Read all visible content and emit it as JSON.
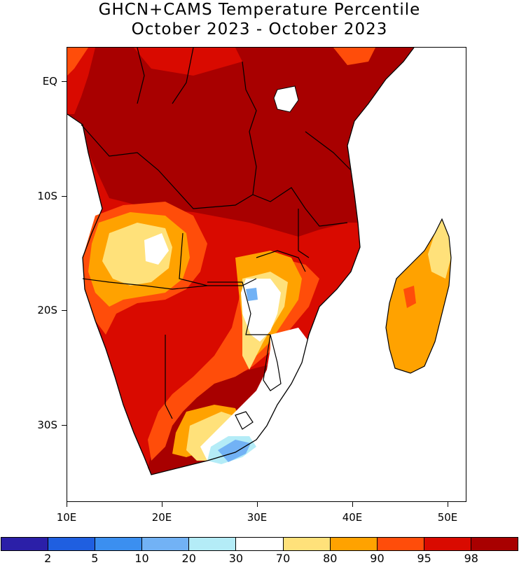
{
  "title_line1": "GHCN+CAMS Temperature Percentile",
  "title_line2": "October 2023 - October 2023",
  "y_axis": [
    {
      "label": "EQ",
      "lat": 0
    },
    {
      "label": "10S",
      "lat": -10
    },
    {
      "label": "20S",
      "lat": -20
    },
    {
      "label": "30S",
      "lat": -30
    }
  ],
  "x_axis": [
    {
      "label": "10E",
      "lon": 10
    },
    {
      "label": "20E",
      "lon": 20
    },
    {
      "label": "30E",
      "lon": 30
    },
    {
      "label": "40E",
      "lon": 40
    },
    {
      "label": "50E",
      "lon": 50
    }
  ],
  "colorbar": {
    "colors": [
      "#2b1fa8",
      "#1f5fe0",
      "#3b8ff0",
      "#72b2f5",
      "#b4ecf7",
      "#ffffff",
      "#ffe17a",
      "#ffa200",
      "#ff4d0a",
      "#d90a00",
      "#a80000"
    ],
    "labels": [
      "2",
      "5",
      "10",
      "20",
      "30",
      "70",
      "80",
      "90",
      "95",
      "98"
    ]
  }
}
